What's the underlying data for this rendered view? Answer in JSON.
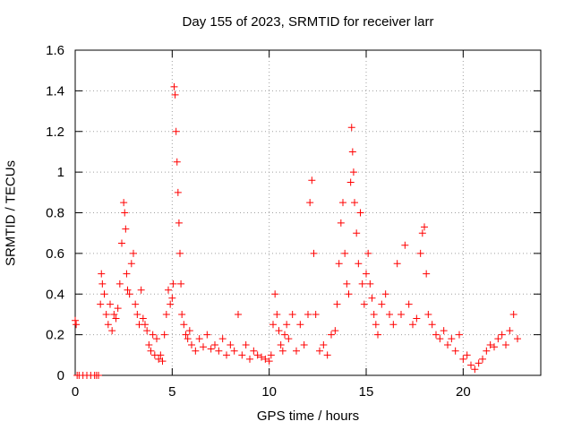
{
  "chart_data": {
    "type": "scatter",
    "title": "Day 155 of 2023, SRMTID for receiver larr",
    "xlabel": "GPS time / hours",
    "ylabel": "SRMTID / TECUs",
    "xlim": [
      0,
      24
    ],
    "ylim": [
      0,
      1.6
    ],
    "xticks": [
      0,
      5,
      10,
      15,
      20
    ],
    "xtick_labels": [
      "0",
      "5",
      "10",
      "15",
      "20"
    ],
    "yticks": [
      0,
      0.2,
      0.4,
      0.6,
      0.8,
      1,
      1.2,
      1.4,
      1.6
    ],
    "ytick_labels": [
      "0",
      "0.2",
      "0.4",
      "0.6",
      "0.8",
      "1",
      "1.2",
      "1.4",
      "1.6"
    ],
    "grid": true,
    "marker": "plus",
    "color": "#ff0000",
    "series": [
      {
        "name": "SRMTID",
        "x": [
          0.0,
          0.05,
          0.1,
          0.2,
          0.4,
          0.6,
          0.8,
          1.0,
          1.1,
          1.2,
          1.3,
          1.35,
          1.4,
          1.5,
          1.6,
          1.7,
          1.8,
          1.9,
          2.0,
          2.1,
          2.2,
          2.3,
          2.4,
          2.5,
          2.55,
          2.6,
          2.65,
          2.7,
          2.8,
          2.9,
          3.0,
          3.1,
          3.2,
          3.3,
          3.4,
          3.5,
          3.6,
          3.7,
          3.8,
          3.9,
          4.0,
          4.1,
          4.2,
          4.3,
          4.4,
          4.5,
          4.6,
          4.7,
          4.8,
          4.9,
          5.0,
          5.05,
          5.1,
          5.15,
          5.2,
          5.25,
          5.3,
          5.35,
          5.4,
          5.45,
          5.5,
          5.6,
          5.7,
          5.8,
          5.9,
          6.0,
          6.2,
          6.4,
          6.6,
          6.8,
          7.0,
          7.2,
          7.4,
          7.6,
          7.8,
          8.0,
          8.2,
          8.4,
          8.6,
          8.8,
          9.0,
          9.2,
          9.4,
          9.6,
          9.8,
          10.0,
          10.1,
          10.2,
          10.3,
          10.4,
          10.5,
          10.6,
          10.7,
          10.8,
          10.9,
          11.0,
          11.2,
          11.4,
          11.6,
          11.8,
          12.0,
          12.1,
          12.2,
          12.3,
          12.4,
          12.6,
          12.8,
          13.0,
          13.2,
          13.4,
          13.5,
          13.6,
          13.7,
          13.8,
          13.9,
          14.0,
          14.1,
          14.2,
          14.25,
          14.3,
          14.35,
          14.4,
          14.5,
          14.6,
          14.7,
          14.8,
          14.9,
          15.0,
          15.1,
          15.2,
          15.3,
          15.4,
          15.5,
          15.6,
          15.8,
          16.0,
          16.2,
          16.4,
          16.6,
          16.8,
          17.0,
          17.2,
          17.4,
          17.6,
          17.8,
          17.9,
          18.0,
          18.1,
          18.2,
          18.4,
          18.6,
          18.8,
          19.0,
          19.2,
          19.4,
          19.6,
          19.8,
          20.0,
          20.2,
          20.4,
          20.6,
          20.8,
          21.0,
          21.2,
          21.4,
          21.6,
          21.8,
          22.0,
          22.2,
          22.4,
          22.6,
          22.8
        ],
        "y": [
          0.27,
          0.25,
          0.0,
          0.0,
          0.0,
          0.0,
          0.0,
          0.0,
          0.0,
          0.0,
          0.35,
          0.5,
          0.45,
          0.4,
          0.3,
          0.25,
          0.35,
          0.22,
          0.3,
          0.28,
          0.33,
          0.45,
          0.65,
          0.85,
          0.8,
          0.72,
          0.5,
          0.42,
          0.4,
          0.55,
          0.6,
          0.35,
          0.3,
          0.25,
          0.42,
          0.28,
          0.25,
          0.22,
          0.15,
          0.12,
          0.2,
          0.1,
          0.18,
          0.08,
          0.1,
          0.07,
          0.2,
          0.3,
          0.42,
          0.35,
          0.38,
          0.45,
          1.42,
          1.38,
          1.2,
          1.05,
          0.9,
          0.75,
          0.6,
          0.45,
          0.3,
          0.25,
          0.2,
          0.18,
          0.22,
          0.15,
          0.12,
          0.18,
          0.14,
          0.2,
          0.13,
          0.15,
          0.12,
          0.18,
          0.1,
          0.15,
          0.12,
          0.3,
          0.1,
          0.15,
          0.08,
          0.12,
          0.1,
          0.09,
          0.08,
          0.07,
          0.1,
          0.25,
          0.4,
          0.3,
          0.22,
          0.15,
          0.12,
          0.2,
          0.25,
          0.18,
          0.3,
          0.12,
          0.25,
          0.15,
          0.3,
          0.85,
          0.96,
          0.6,
          0.3,
          0.12,
          0.15,
          0.1,
          0.2,
          0.22,
          0.35,
          0.55,
          0.75,
          0.85,
          0.6,
          0.45,
          0.4,
          0.95,
          1.22,
          1.1,
          1.0,
          0.85,
          0.7,
          0.55,
          0.8,
          0.45,
          0.35,
          0.5,
          0.6,
          0.45,
          0.38,
          0.3,
          0.25,
          0.2,
          0.35,
          0.4,
          0.3,
          0.25,
          0.55,
          0.3,
          0.64,
          0.35,
          0.25,
          0.28,
          0.6,
          0.7,
          0.73,
          0.5,
          0.3,
          0.25,
          0.2,
          0.18,
          0.22,
          0.15,
          0.18,
          0.12,
          0.2,
          0.08,
          0.1,
          0.05,
          0.03,
          0.06,
          0.08,
          0.12,
          0.15,
          0.14,
          0.18,
          0.2,
          0.15,
          0.22,
          0.3,
          0.18
        ]
      }
    ]
  }
}
